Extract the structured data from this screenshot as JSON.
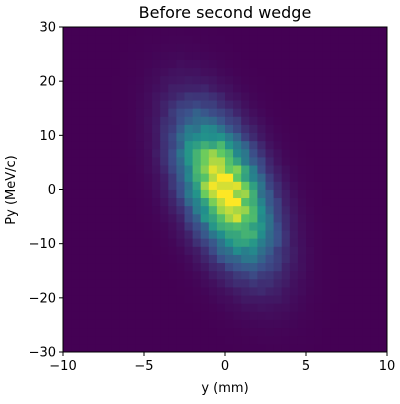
{
  "chart_data": {
    "type": "heatmap",
    "title": "Before second wedge",
    "xlabel": "y (mm)",
    "ylabel": "Py (MeV/c)",
    "xlim": [
      -10,
      10
    ],
    "ylim": [
      -30,
      30
    ],
    "xticks": [
      -10,
      -5,
      0,
      5,
      10
    ],
    "yticks": [
      -30,
      -20,
      -10,
      0,
      10,
      20,
      30
    ],
    "x_tick_labels": [
      "−10",
      "−5",
      "0",
      "5",
      "10"
    ],
    "y_tick_labels": [
      "−30",
      "−20",
      "−10",
      "0",
      "10",
      "20",
      "30"
    ],
    "bins": [
      40,
      40
    ],
    "distribution": {
      "kind": "correlated-gaussian-2d",
      "mean_x": 0.0,
      "mean_y": 0.0,
      "sigma_x": 1.9,
      "sigma_y": 9.0,
      "correlation": -0.5
    },
    "colormap": "viridis",
    "colors": [
      "#440154",
      "#3b528b",
      "#21918c",
      "#5ec962",
      "#fde725"
    ],
    "grid": false,
    "colorbar": false
  }
}
